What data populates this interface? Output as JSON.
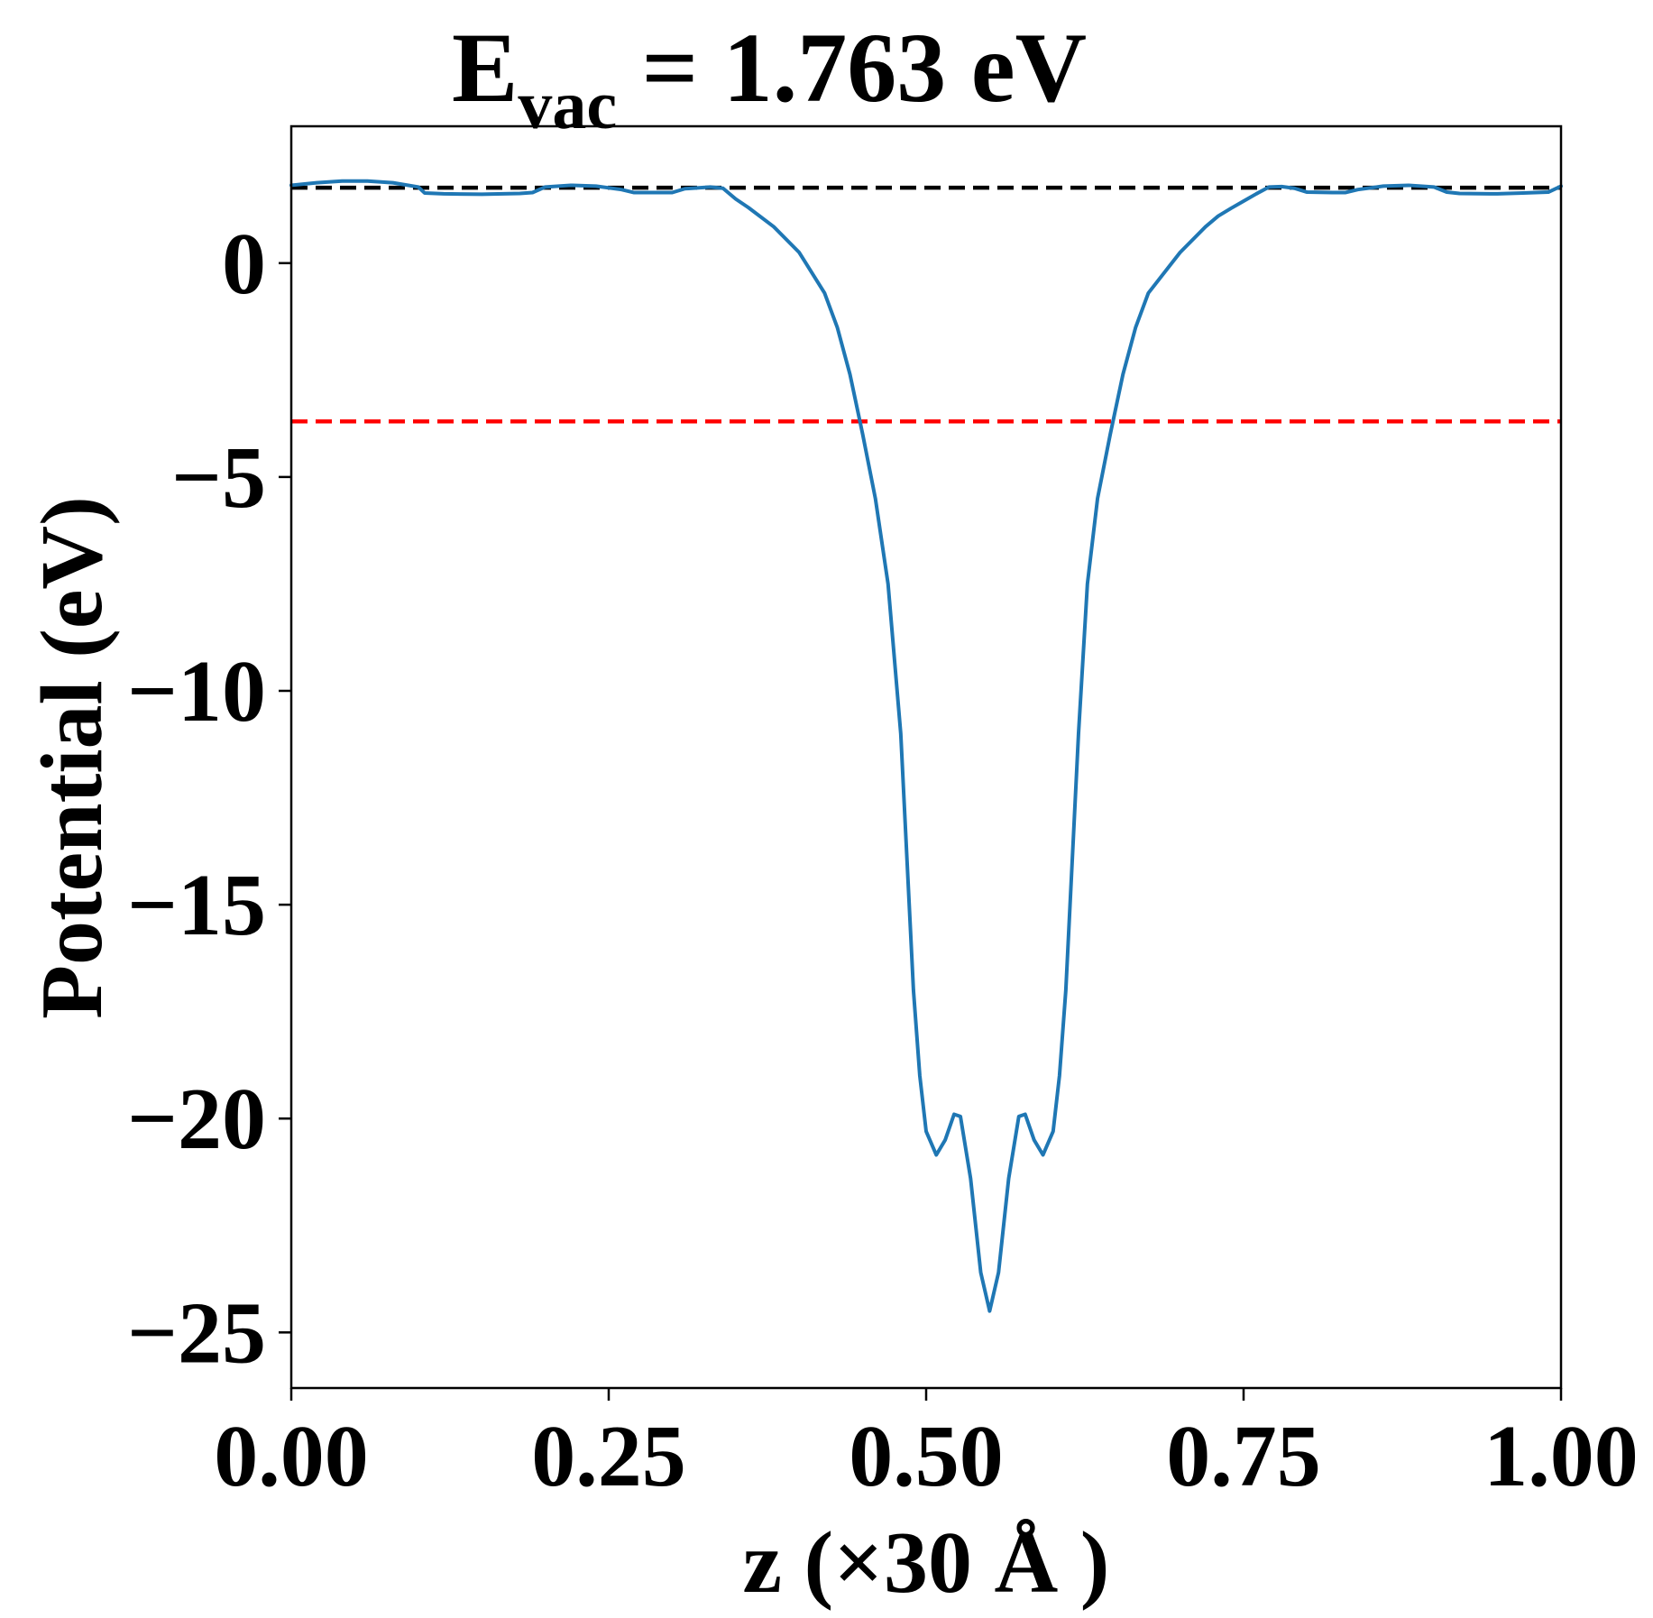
{
  "chart_data": {
    "type": "line",
    "title_main": "E",
    "title_sub": "vac",
    "title_rest": " = 1.763 eV",
    "xlabel": "z (×30 Å )",
    "ylabel": "Potential (eV)",
    "xlim": [
      0,
      1
    ],
    "ylim": [
      -26.3,
      3.2
    ],
    "x_ticks": [
      0,
      0.25,
      0.5,
      0.75,
      1
    ],
    "x_tick_labels": [
      "0.00",
      "0.25",
      "0.50",
      "0.75",
      "1.00"
    ],
    "y_ticks": [
      0,
      -5,
      -10,
      -15,
      -20,
      -25
    ],
    "y_tick_labels": [
      "0",
      "−5",
      "−10",
      "−15",
      "−20",
      "−25"
    ],
    "grid": false,
    "reference_lines": [
      {
        "y": 1.763,
        "color": "#000000",
        "style": "dashed"
      },
      {
        "y": -3.7,
        "color": "#ff0000",
        "style": "dashed"
      }
    ],
    "series": [
      {
        "color": "#1f77b4",
        "points": [
          [
            0.0,
            1.82
          ],
          [
            0.02,
            1.88
          ],
          [
            0.04,
            1.92
          ],
          [
            0.06,
            1.92
          ],
          [
            0.08,
            1.88
          ],
          [
            0.1,
            1.78
          ],
          [
            0.105,
            1.64
          ],
          [
            0.12,
            1.62
          ],
          [
            0.15,
            1.61
          ],
          [
            0.18,
            1.63
          ],
          [
            0.19,
            1.65
          ],
          [
            0.2,
            1.78
          ],
          [
            0.22,
            1.82
          ],
          [
            0.24,
            1.8
          ],
          [
            0.26,
            1.72
          ],
          [
            0.27,
            1.65
          ],
          [
            0.3,
            1.65
          ],
          [
            0.31,
            1.74
          ],
          [
            0.33,
            1.78
          ],
          [
            0.34,
            1.75
          ],
          [
            0.35,
            1.5
          ],
          [
            0.36,
            1.3
          ],
          [
            0.38,
            0.85
          ],
          [
            0.4,
            0.25
          ],
          [
            0.42,
            -0.7
          ],
          [
            0.43,
            -1.5
          ],
          [
            0.44,
            -2.6
          ],
          [
            0.45,
            -4.0
          ],
          [
            0.46,
            -5.5
          ],
          [
            0.47,
            -7.5
          ],
          [
            0.48,
            -11.0
          ],
          [
            0.485,
            -14.0
          ],
          [
            0.49,
            -17.0
          ],
          [
            0.495,
            -19.0
          ],
          [
            0.5,
            -20.3
          ],
          [
            0.508,
            -20.85
          ],
          [
            0.515,
            -20.5
          ],
          [
            0.522,
            -19.9
          ],
          [
            0.527,
            -19.95
          ],
          [
            0.535,
            -21.4
          ],
          [
            0.543,
            -23.6
          ],
          [
            0.55,
            -24.5
          ],
          [
            0.557,
            -23.6
          ],
          [
            0.565,
            -21.4
          ],
          [
            0.573,
            -19.95
          ],
          [
            0.578,
            -19.9
          ],
          [
            0.585,
            -20.5
          ],
          [
            0.592,
            -20.85
          ],
          [
            0.6,
            -20.3
          ],
          [
            0.605,
            -19.0
          ],
          [
            0.61,
            -17.0
          ],
          [
            0.615,
            -14.0
          ],
          [
            0.62,
            -11.0
          ],
          [
            0.627,
            -7.5
          ],
          [
            0.635,
            -5.5
          ],
          [
            0.645,
            -4.0
          ],
          [
            0.655,
            -2.6
          ],
          [
            0.665,
            -1.5
          ],
          [
            0.675,
            -0.7
          ],
          [
            0.7,
            0.25
          ],
          [
            0.72,
            0.85
          ],
          [
            0.73,
            1.1
          ],
          [
            0.74,
            1.28
          ],
          [
            0.75,
            1.45
          ],
          [
            0.76,
            1.62
          ],
          [
            0.77,
            1.78
          ],
          [
            0.78,
            1.79
          ],
          [
            0.79,
            1.75
          ],
          [
            0.8,
            1.66
          ],
          [
            0.82,
            1.65
          ],
          [
            0.83,
            1.65
          ],
          [
            0.84,
            1.72
          ],
          [
            0.86,
            1.8
          ],
          [
            0.88,
            1.82
          ],
          [
            0.9,
            1.78
          ],
          [
            0.91,
            1.66
          ],
          [
            0.92,
            1.63
          ],
          [
            0.95,
            1.62
          ],
          [
            0.97,
            1.64
          ],
          [
            0.99,
            1.66
          ],
          [
            1.0,
            1.8
          ]
        ]
      }
    ]
  }
}
